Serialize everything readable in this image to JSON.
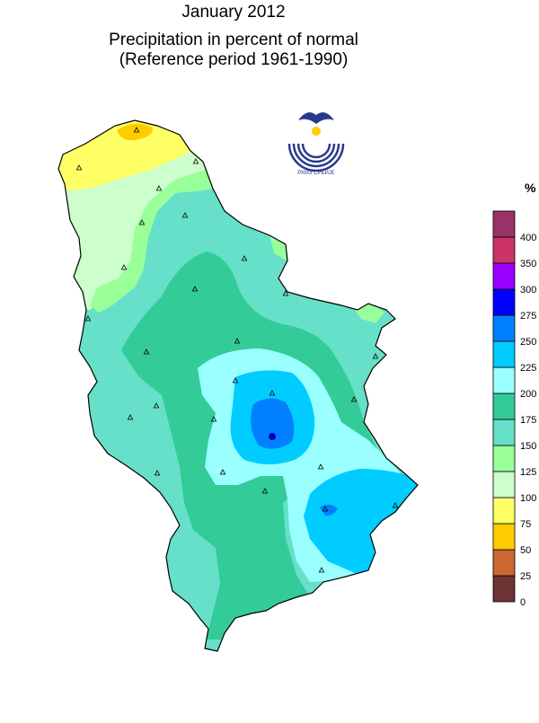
{
  "title": {
    "line1": "January 2012",
    "line2": "Precipitation in percent of normal",
    "line3": "(Reference period 1961-1990)"
  },
  "logo": {
    "text": "РХМЗ СРБИЈЕ",
    "color": "#2a3a8a"
  },
  "legend": {
    "unit": "%",
    "classes": [
      {
        "label": "0",
        "color": "#6b3333"
      },
      {
        "label": "25",
        "color": "#cc6633"
      },
      {
        "label": "50",
        "color": "#ffcc00"
      },
      {
        "label": "75",
        "color": "#ffff66"
      },
      {
        "label": "100",
        "color": "#ccffcc"
      },
      {
        "label": "125",
        "color": "#99ff99"
      },
      {
        "label": "150",
        "color": "#66e0c8"
      },
      {
        "label": "175",
        "color": "#33cc99"
      },
      {
        "label": "200",
        "color": "#99ffff"
      },
      {
        "label": "225",
        "color": "#00ccff"
      },
      {
        "label": "250",
        "color": "#0080ff"
      },
      {
        "label": "275",
        "color": "#0000ff"
      },
      {
        "label": "300",
        "color": "#9900ff"
      },
      {
        "label": "350",
        "color": "#cc3366"
      },
      {
        "label": "400",
        "color": "#993366"
      }
    ]
  },
  "map_colors": {
    "yellow": "#ffff66",
    "orange": "#ffcc00",
    "light_green": "#ccffcc",
    "green": "#99ff99",
    "teal": "#66e0c8",
    "dark_teal": "#33cc99",
    "light_cyan": "#99ffff",
    "cyan": "#00ccff",
    "blue": "#0080ff",
    "deep_blue": "#0000ff"
  },
  "stations_marker": "triangle"
}
